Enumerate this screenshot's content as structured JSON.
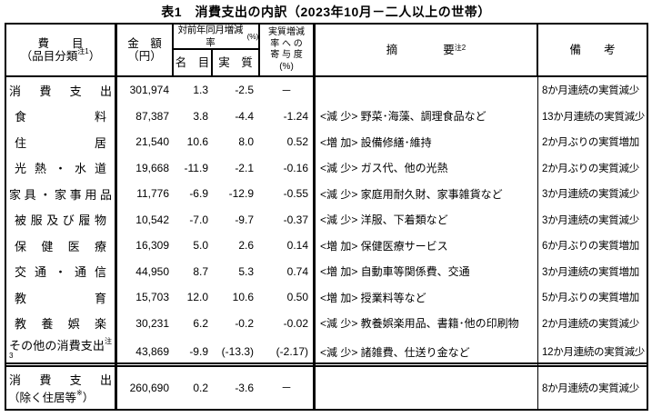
{
  "title": "表1　消費支出の内訳（2023年10月－二人以上の世帯）",
  "colors": {
    "border": "#000000",
    "background": "#ffffff",
    "text": "#000000"
  },
  "header": {
    "item_line1": "費　　目",
    "item_line2_open": "（品目分類",
    "item_note": "注1",
    "item_line2_close": "）",
    "amount_line1": "金　額",
    "amount_line2": "（円）",
    "rate_label": "対前年同月増減率",
    "rate_unit": "(%)",
    "nominal": "名　目",
    "real": "実　質",
    "contrib_line1": "実質増減",
    "contrib_line2": "率 へ の",
    "contrib_line3": "寄 与 度",
    "contrib_line4": "(%)",
    "summary_label": "摘　　　　要",
    "summary_note": "注2",
    "remarks": "備　　考"
  },
  "rows": [
    {
      "label": "消費支出",
      "amount": "301,974",
      "nominal": "1.3",
      "real": "-2.5",
      "contribution": "－",
      "summary": "",
      "remarks": "8か月連続の実質減少"
    },
    {
      "label": "食料",
      "amount": "87,387",
      "nominal": "3.8",
      "real": "-4.4",
      "contribution": "-1.24",
      "summary": "<減 少> 野菜･海藻、調理食品など",
      "remarks": "13か月連続の実質減少"
    },
    {
      "label": "住居",
      "amount": "21,540",
      "nominal": "10.6",
      "real": "8.0",
      "contribution": "0.52",
      "summary": "<増 加> 設備修繕･維持",
      "remarks": "2か月ぶりの実質増加"
    },
    {
      "label": "光熱・水道",
      "amount": "19,668",
      "nominal": "-11.9",
      "real": "-2.1",
      "contribution": "-0.16",
      "summary": "<減 少> ガス代、他の光熱",
      "remarks": "2か月ぶりの実質減少"
    },
    {
      "label": "家具・家事用品",
      "amount": "11,776",
      "nominal": "-6.9",
      "real": "-12.9",
      "contribution": "-0.55",
      "summary": "<減 少> 家庭用耐久財、家事雑貨など",
      "remarks": "3か月連続の実質減少"
    },
    {
      "label": "被服及び履物",
      "amount": "10,542",
      "nominal": "-7.0",
      "real": "-9.7",
      "contribution": "-0.37",
      "summary": "<減 少> 洋服、下着類など",
      "remarks": "3か月連続の実質減少"
    },
    {
      "label": "保健医療",
      "amount": "16,309",
      "nominal": "5.0",
      "real": "2.6",
      "contribution": "0.14",
      "summary": "<増 加> 保健医療サービス",
      "remarks": "6か月ぶりの実質増加"
    },
    {
      "label": "交通・通信",
      "amount": "44,950",
      "nominal": "8.7",
      "real": "5.3",
      "contribution": "0.74",
      "summary": "<増 加> 自動車等関係費、交通",
      "remarks": "3か月連続の実質増加"
    },
    {
      "label": "教育",
      "amount": "15,703",
      "nominal": "12.0",
      "real": "10.6",
      "contribution": "0.50",
      "summary": "<増 加> 授業料等など",
      "remarks": "5か月ぶりの実質増加"
    },
    {
      "label": "教養娯楽",
      "amount": "30,231",
      "nominal": "6.2",
      "real": "-0.2",
      "contribution": "-0.02",
      "summary": "<減 少> 教養娯楽用品、書籍･他の印刷物",
      "remarks": "2か月連続の実質減少"
    },
    {
      "label": "その他の消費支出",
      "label_note": "注3",
      "amount": "43,869",
      "nominal": "-9.9",
      "real": "(-13.3)",
      "contribution": "(-2.17)",
      "summary": "<減 少> 諸雑費、仕送り金など",
      "remarks": "12か月連続の実質減少"
    }
  ],
  "total_row": {
    "label_line1": "消費支出",
    "label_line2_open": "（除く住居等",
    "label_note": "※",
    "label_line2_close": "）",
    "amount": "260,690",
    "nominal": "0.2",
    "real": "-3.6",
    "contribution": "－",
    "summary": "",
    "remarks": "8か月連続の実質減少"
  }
}
